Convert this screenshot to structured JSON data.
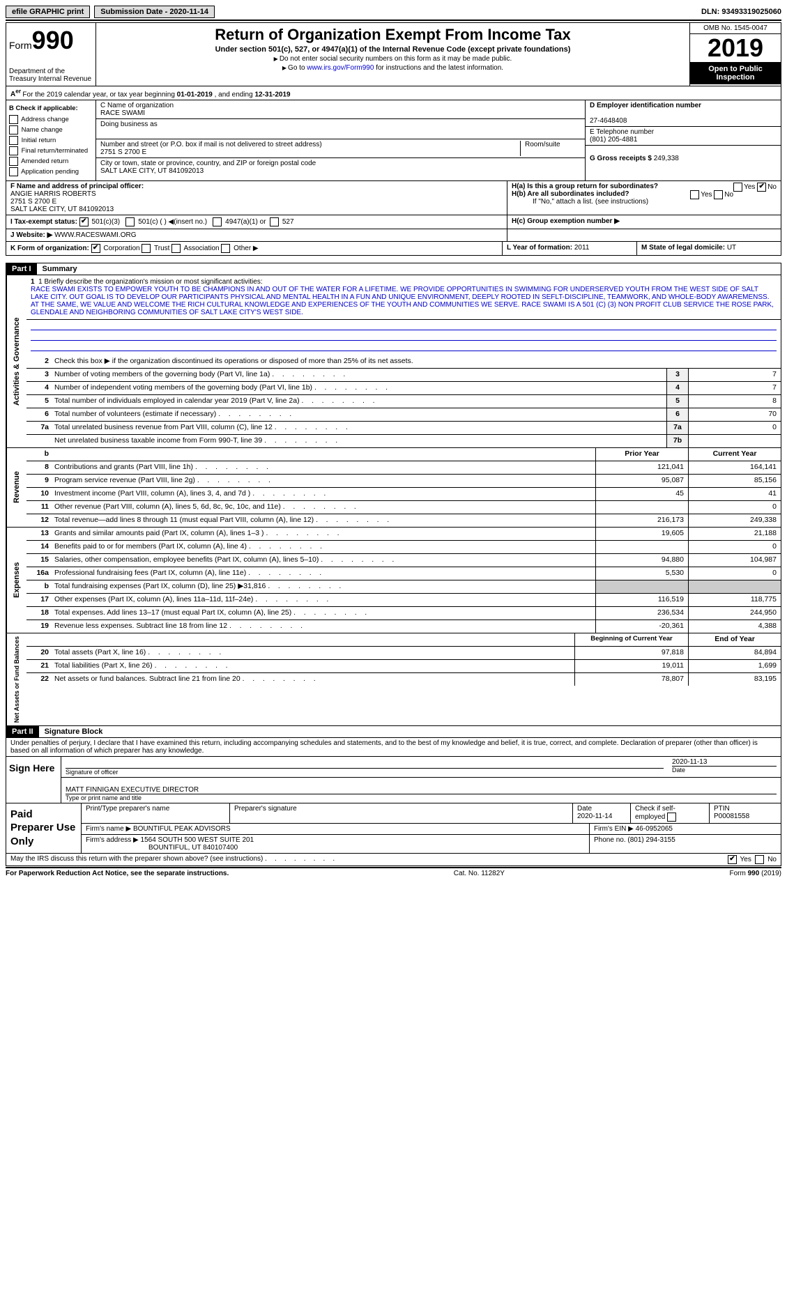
{
  "topbar": {
    "efile": "efile GRAPHIC print",
    "submission": "Submission Date - 2020-11-14",
    "dln_label": "DLN:",
    "dln": "93493319025060"
  },
  "header": {
    "form_word": "Form",
    "form_num": "990",
    "dept": "Department of the Treasury Internal Revenue",
    "title": "Return of Organization Exempt From Income Tax",
    "sub": "Under section 501(c), 527, or 4947(a)(1) of the Internal Revenue Code (except private foundations)",
    "note1": "Do not enter social security numbers on this form as it may be made public.",
    "note2_pre": "Go to ",
    "note2_link": "www.irs.gov/Form990",
    "note2_post": " for instructions and the latest information.",
    "omb": "OMB No. 1545-0047",
    "year": "2019",
    "inspect": "Open to Public Inspection"
  },
  "row_a": {
    "text_pre": "For the 2019 calendar year, or tax year beginning ",
    "begin": "01-01-2019",
    "mid": " , and ending ",
    "end": "12-31-2019"
  },
  "col_b": {
    "header": "B Check if applicable:",
    "opts": [
      "Address change",
      "Name change",
      "Initial return",
      "Final return/terminated",
      "Amended return",
      "Application pending"
    ]
  },
  "col_c": {
    "name_label": "C Name of organization",
    "name": "RACE SWAMI",
    "dba_label": "Doing business as",
    "addr_label": "Number and street (or P.O. box if mail is not delivered to street address)",
    "addr": "2751 S 2700 E",
    "room_label": "Room/suite",
    "city_label": "City or town, state or province, country, and ZIP or foreign postal code",
    "city": "SALT LAKE CITY, UT  841092013"
  },
  "col_d": {
    "ein_label": "D Employer identification number",
    "ein": "27-4648408",
    "tel_label": "E Telephone number",
    "tel": "(801) 205-4881",
    "gross_label": "G Gross receipts $",
    "gross": "249,338"
  },
  "officer": {
    "label": "F  Name and address of principal officer:",
    "name": "ANGIE HARRIS ROBERTS",
    "addr1": "2751 S 2700 E",
    "addr2": "SALT LAKE CITY, UT  841092013"
  },
  "h": {
    "a_label": "H(a)  Is this a group return for subordinates?",
    "b_label": "H(b)  Are all subordinates included?",
    "b_note": "If \"No,\" attach a list. (see instructions)",
    "c_label": "H(c)  Group exemption number ▶",
    "yes": "Yes",
    "no": "No"
  },
  "tax_status": {
    "label": "I  Tax-exempt status:",
    "opt1": "501(c)(3)",
    "opt2": "501(c) (  ) ◀(insert no.)",
    "opt3": "4947(a)(1) or",
    "opt4": "527"
  },
  "website": {
    "label": "J  Website: ▶",
    "val": "WWW.RACESWAMI.ORG"
  },
  "org_form": {
    "label": "K Form of organization:",
    "corp": "Corporation",
    "trust": "Trust",
    "assoc": "Association",
    "other": "Other ▶",
    "year_label": "L Year of formation:",
    "year": "2011",
    "state_label": "M State of legal domicile:",
    "state": "UT"
  },
  "part1": {
    "header": "Part I",
    "title": "Summary",
    "line1_label": "1   Briefly describe the organization's mission or most significant activities:",
    "mission": "RACE SWAMI EXISTS TO EMPOWER YOUTH TO BE CHAMPIONS IN AND OUT OF THE WATER FOR A LIFETIME. WE PROVIDE OPPORTUNITIES IN SWIMMING FOR UNDERSERVED YOUTH FROM THE WEST SIDE OF SALT LAKE CITY. OUT GOAL IS TO DEVELOP OUR PARTICIPANTS PHYSICAL AND MENTAL HEALTH IN A FUN AND UNIQUE ENVIRONMENT, DEEPLY ROOTED IN SEFLT-DISCIPLINE, TEAMWORK, AND WHOLE-BODY AWAREMENSS. AT THE SAME, WE VALUE AND WELCOME THE RICH CULTURAL KNOWLEDGE AND EXPERIENCES OF THE YOUTH AND COMMUNITIES WE SERVE. RACE SWAMI IS A 501 (C) (3) NON PROFIT CLUB SERVICE THE ROSE PARK, GLENDALE AND NEIGHBORING COMMUNITIES OF SALT LAKE CITY'S WEST SIDE.",
    "line2": "Check this box ▶      if the organization discontinued its operations or disposed of more than 25% of its net assets."
  },
  "summary_lines": [
    {
      "n": "3",
      "d": "Number of voting members of the governing body (Part VI, line 1a)",
      "box": "3",
      "v": "7"
    },
    {
      "n": "4",
      "d": "Number of independent voting members of the governing body (Part VI, line 1b)",
      "box": "4",
      "v": "7"
    },
    {
      "n": "5",
      "d": "Total number of individuals employed in calendar year 2019 (Part V, line 2a)",
      "box": "5",
      "v": "8"
    },
    {
      "n": "6",
      "d": "Total number of volunteers (estimate if necessary)",
      "box": "6",
      "v": "70"
    },
    {
      "n": "7a",
      "d": "Total unrelated business revenue from Part VIII, column (C), line 12",
      "box": "7a",
      "v": "0"
    },
    {
      "n": "",
      "d": "Net unrelated business taxable income from Form 990-T, line 39",
      "box": "7b",
      "v": ""
    }
  ],
  "two_col_header": {
    "prior": "Prior Year",
    "current": "Current Year"
  },
  "revenue": [
    {
      "n": "8",
      "d": "Contributions and grants (Part VIII, line 1h)",
      "p": "121,041",
      "c": "164,141"
    },
    {
      "n": "9",
      "d": "Program service revenue (Part VIII, line 2g)",
      "p": "95,087",
      "c": "85,156"
    },
    {
      "n": "10",
      "d": "Investment income (Part VIII, column (A), lines 3, 4, and 7d )",
      "p": "45",
      "c": "41"
    },
    {
      "n": "11",
      "d": "Other revenue (Part VIII, column (A), lines 5, 6d, 8c, 9c, 10c, and 11e)",
      "p": "",
      "c": "0"
    },
    {
      "n": "12",
      "d": "Total revenue—add lines 8 through 11 (must equal Part VIII, column (A), line 12)",
      "p": "216,173",
      "c": "249,338"
    }
  ],
  "expenses": [
    {
      "n": "13",
      "d": "Grants and similar amounts paid (Part IX, column (A), lines 1–3 )",
      "p": "19,605",
      "c": "21,188"
    },
    {
      "n": "14",
      "d": "Benefits paid to or for members (Part IX, column (A), line 4)",
      "p": "",
      "c": "0"
    },
    {
      "n": "15",
      "d": "Salaries, other compensation, employee benefits (Part IX, column (A), lines 5–10)",
      "p": "94,880",
      "c": "104,987"
    },
    {
      "n": "16a",
      "d": "Professional fundraising fees (Part IX, column (A), line 11e)",
      "p": "5,530",
      "c": "0"
    },
    {
      "n": "b",
      "d": "Total fundraising expenses (Part IX, column (D), line 25) ▶31,816",
      "p": "",
      "c": "",
      "shade": true
    },
    {
      "n": "17",
      "d": "Other expenses (Part IX, column (A), lines 11a–11d, 11f–24e)",
      "p": "116,519",
      "c": "118,775"
    },
    {
      "n": "18",
      "d": "Total expenses. Add lines 13–17 (must equal Part IX, column (A), line 25)",
      "p": "236,534",
      "c": "244,950"
    },
    {
      "n": "19",
      "d": "Revenue less expenses. Subtract line 18 from line 12",
      "p": "-20,361",
      "c": "4,388"
    }
  ],
  "net_header": {
    "begin": "Beginning of Current Year",
    "end": "End of Year"
  },
  "net": [
    {
      "n": "20",
      "d": "Total assets (Part X, line 16)",
      "p": "97,818",
      "c": "84,894"
    },
    {
      "n": "21",
      "d": "Total liabilities (Part X, line 26)",
      "p": "19,011",
      "c": "1,699"
    },
    {
      "n": "22",
      "d": "Net assets or fund balances. Subtract line 21 from line 20",
      "p": "78,807",
      "c": "83,195"
    }
  ],
  "side_labels": {
    "gov": "Activities & Governance",
    "rev": "Revenue",
    "exp": "Expenses",
    "net": "Net Assets or Fund Balances"
  },
  "part2": {
    "header": "Part II",
    "title": "Signature Block",
    "intro": "Under penalties of perjury, I declare that I have examined this return, including accompanying schedules and statements, and to the best of my knowledge and belief, it is true, correct, and complete. Declaration of preparer (other than officer) is based on all information of which preparer has any knowledge.",
    "sign_here": "Sign Here",
    "sig_officer": "Signature of officer",
    "date": "Date",
    "sig_date": "2020-11-13",
    "name_title": "MATT FINNIGAN  EXECUTIVE DIRECTOR",
    "name_title_label": "Type or print name and title"
  },
  "paid": {
    "label": "Paid Preparer Use Only",
    "h1": "Print/Type preparer's name",
    "h2": "Preparer's signature",
    "h3": "Date",
    "h3v": "2020-11-14",
    "h4": "Check       if self-employed",
    "h5": "PTIN",
    "ptin": "P00081558",
    "firm_name_label": "Firm's name    ▶",
    "firm_name": "BOUNTIFUL PEAK ADVISORS",
    "firm_ein_label": "Firm's EIN ▶",
    "firm_ein": "46-0952065",
    "firm_addr_label": "Firm's address ▶",
    "firm_addr1": "1564 SOUTH 500 WEST SUITE 201",
    "firm_addr2": "BOUNTIFUL, UT  840107400",
    "phone_label": "Phone no.",
    "phone": "(801) 294-3155"
  },
  "discuss": {
    "text": "May the IRS discuss this return with the preparer shown above? (see instructions)",
    "yes": "Yes",
    "no": "No"
  },
  "footer": {
    "left": "For Paperwork Reduction Act Notice, see the separate instructions.",
    "mid": "Cat. No. 11282Y",
    "right": "Form 990 (2019)"
  }
}
